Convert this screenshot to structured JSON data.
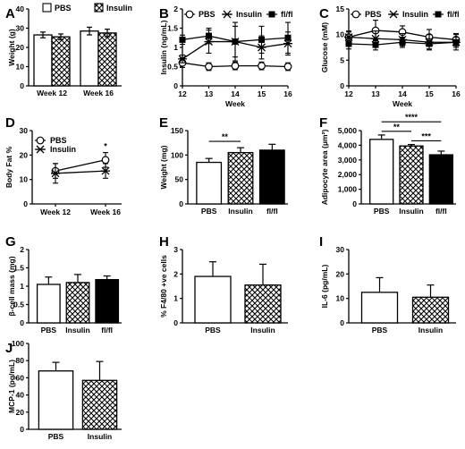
{
  "chart_data": [
    {
      "panel": "A",
      "type": "bar",
      "ylabel": "Weight (g)",
      "ylim": [
        0,
        40
      ],
      "yticks": [
        0,
        10,
        20,
        30,
        40
      ],
      "categories": [
        "Week 12",
        "Week 16"
      ],
      "legend": [
        "PBS",
        "Insulin"
      ],
      "series": [
        {
          "name": "PBS",
          "fill": "white",
          "values": [
            26.5,
            28.5
          ],
          "errors": [
            1.5,
            2
          ]
        },
        {
          "name": "Insulin",
          "fill": "hatch",
          "values": [
            25.5,
            27.5
          ],
          "errors": [
            1.5,
            2
          ]
        }
      ]
    },
    {
      "panel": "B",
      "type": "line",
      "ylabel": "Insulin (ng/mL)",
      "xlabel": "Week",
      "xlim": [
        12,
        16
      ],
      "xticks": [
        12,
        13,
        14,
        15,
        16
      ],
      "ylim": [
        0,
        2.0
      ],
      "yticks": [
        0,
        0.5,
        1.0,
        1.5,
        2.0
      ],
      "legend": [
        "PBS",
        "Insulin",
        "fl/fl"
      ],
      "series": [
        {
          "name": "PBS",
          "marker": "circle",
          "x": [
            12,
            13,
            14,
            15,
            16
          ],
          "values": [
            0.6,
            0.5,
            0.52,
            0.52,
            0.5
          ],
          "errors": [
            0.12,
            0.1,
            0.1,
            0.1,
            0.1
          ]
        },
        {
          "name": "Insulin",
          "marker": "star",
          "x": [
            12,
            13,
            14,
            15,
            16
          ],
          "values": [
            0.7,
            1.15,
            1.15,
            1.0,
            1.1
          ],
          "errors": [
            0.1,
            0.3,
            0.5,
            0.3,
            0.3
          ]
        },
        {
          "name": "fl/fl",
          "marker": "square",
          "x": [
            12,
            13,
            14,
            15,
            16
          ],
          "values": [
            1.2,
            1.3,
            1.15,
            1.2,
            1.25
          ],
          "errors": [
            0.12,
            0.2,
            0.4,
            0.35,
            0.4
          ]
        }
      ]
    },
    {
      "panel": "C",
      "type": "line",
      "ylabel": "Glucose (mM)",
      "xlabel": "Week",
      "xlim": [
        12,
        16
      ],
      "xticks": [
        12,
        13,
        14,
        15,
        16
      ],
      "ylim": [
        0,
        15
      ],
      "yticks": [
        0,
        5,
        10,
        15
      ],
      "legend": [
        "PBS",
        "Insulin",
        "fl/fl"
      ],
      "series": [
        {
          "name": "PBS",
          "marker": "circle",
          "x": [
            12,
            13,
            14,
            15,
            16
          ],
          "values": [
            9.5,
            10.8,
            10.5,
            9.5,
            9
          ],
          "errors": [
            1.2,
            2,
            1.2,
            1.5,
            1.2
          ]
        },
        {
          "name": "Insulin",
          "marker": "star",
          "x": [
            12,
            13,
            14,
            15,
            16
          ],
          "values": [
            9.5,
            9.2,
            9,
            8.5,
            8.5
          ],
          "errors": [
            1,
            1.5,
            1.2,
            1.5,
            1.5
          ]
        },
        {
          "name": "fl/fl",
          "marker": "square",
          "x": [
            12,
            13,
            14,
            15,
            16
          ],
          "values": [
            8.2,
            8,
            8.5,
            8.2,
            8.5
          ],
          "errors": [
            1,
            1,
            1,
            1,
            1
          ]
        }
      ]
    },
    {
      "panel": "D",
      "type": "line",
      "ylabel": "Body Fat %",
      "ylim": [
        0,
        30
      ],
      "yticks": [
        0,
        10,
        20,
        30
      ],
      "categories": [
        "Week 12",
        "Week 16"
      ],
      "legend": [
        "PBS",
        "Insulin"
      ],
      "annotations": [
        "*"
      ],
      "series": [
        {
          "name": "PBS",
          "marker": "circle",
          "values": [
            13.5,
            18
          ],
          "errors": [
            3,
            3
          ]
        },
        {
          "name": "Insulin",
          "marker": "star",
          "values": [
            12.5,
            13.5
          ],
          "errors": [
            4,
            3
          ]
        }
      ]
    },
    {
      "panel": "E",
      "type": "bar",
      "ylabel": "Weight (mg)",
      "ylim": [
        0,
        150
      ],
      "yticks": [
        0,
        50,
        100,
        150
      ],
      "categories": [
        "PBS",
        "Insulin",
        "fl/fl"
      ],
      "fills": [
        "white",
        "hatch",
        "black"
      ],
      "values": [
        85,
        105,
        110
      ],
      "errors": [
        8,
        10,
        12
      ],
      "annotations": [
        "**"
      ]
    },
    {
      "panel": "F",
      "type": "bar",
      "ylabel": "Adipocyte area (μm²)",
      "ylim": [
        0,
        5000
      ],
      "yticks": [
        0,
        1000,
        2000,
        3000,
        4000,
        5000
      ],
      "categories": [
        "PBS",
        "Insulin",
        "fl/fl"
      ],
      "fills": [
        "white",
        "hatch",
        "black"
      ],
      "values": [
        4400,
        3950,
        3350
      ],
      "errors": [
        300,
        100,
        250
      ],
      "annotations": [
        "****",
        "**",
        "***"
      ]
    },
    {
      "panel": "G",
      "type": "bar",
      "ylabel": "β-cell mass (mg)",
      "ylim": [
        0,
        2.0
      ],
      "yticks": [
        0,
        0.5,
        1.0,
        1.5,
        2.0
      ],
      "categories": [
        "PBS",
        "Insulin",
        "fl/fl"
      ],
      "fills": [
        "white",
        "hatch",
        "black"
      ],
      "values": [
        1.05,
        1.1,
        1.18
      ],
      "errors": [
        0.2,
        0.22,
        0.1
      ]
    },
    {
      "panel": "H",
      "type": "bar",
      "ylabel": "% F4/80 +ve cells",
      "ylim": [
        0,
        3
      ],
      "yticks": [
        0,
        1,
        2,
        3
      ],
      "categories": [
        "PBS",
        "Insulin"
      ],
      "fills": [
        "white",
        "hatch"
      ],
      "values": [
        1.9,
        1.55
      ],
      "errors": [
        0.6,
        0.85
      ]
    },
    {
      "panel": "I",
      "type": "bar",
      "ylabel": "IL-6 (pg/mL)",
      "ylim": [
        0,
        30
      ],
      "yticks": [
        0,
        10,
        20,
        30
      ],
      "categories": [
        "PBS",
        "Insulin"
      ],
      "fills": [
        "white",
        "hatch"
      ],
      "values": [
        12.5,
        10.5
      ],
      "errors": [
        6,
        5
      ]
    },
    {
      "panel": "J",
      "type": "bar",
      "ylabel": "MCP-1 (pg/mL)",
      "ylim": [
        0,
        100
      ],
      "yticks": [
        0,
        20,
        40,
        60,
        80,
        100
      ],
      "categories": [
        "PBS",
        "Insulin"
      ],
      "fills": [
        "white",
        "hatch"
      ],
      "values": [
        68,
        57
      ],
      "errors": [
        10,
        22
      ]
    }
  ]
}
